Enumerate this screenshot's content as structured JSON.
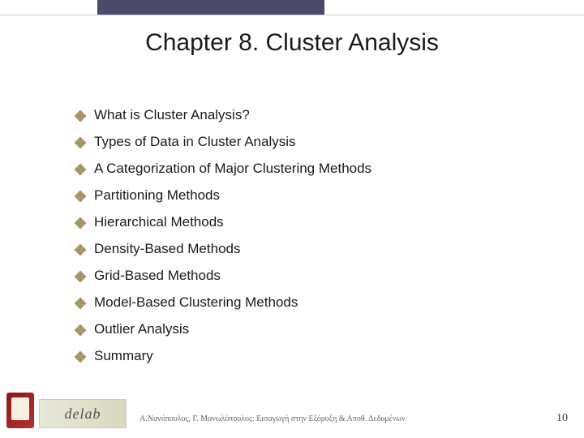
{
  "title": "Chapter 8. Cluster Analysis",
  "bullets": [
    {
      "text": "What is Cluster Analysis?"
    },
    {
      "text": "Types of Data in Cluster Analysis"
    },
    {
      "text": "A Categorization of Major Clustering Methods"
    },
    {
      "text": "Partitioning Methods"
    },
    {
      "text": "Hierarchical Methods"
    },
    {
      "text": "Density-Based Methods"
    },
    {
      "text": "Grid-Based Methods"
    },
    {
      "text": "Model-Based Clustering Methods"
    },
    {
      "text": "Outlier Analysis"
    },
    {
      "text": "Summary"
    }
  ],
  "footer": {
    "text": "Α.Νανόπουλος, Γ. Μανωλόπουλος: Εισαγωγή στην Εξόρυξη & Αποθ. Δεδομένων",
    "logo_label": "delab"
  },
  "slide_number": "10",
  "colors": {
    "top_bar": "#4a4a6a",
    "title_color": "#1a1a1a",
    "text_color": "#1a1a1a",
    "bullet_fill": "#b8a878",
    "bullet_stroke": "#8a7850",
    "footer_color": "#666666",
    "background": "#ffffff"
  },
  "fonts": {
    "title_size": 30,
    "body_size": 17,
    "footer_size": 10
  }
}
